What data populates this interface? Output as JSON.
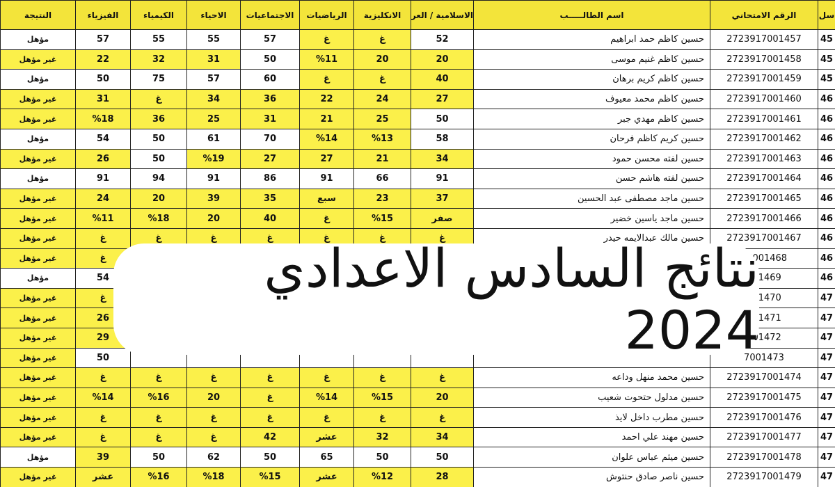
{
  "banner": {
    "title": "نتائج السادس الاعدادي 2024"
  },
  "table": {
    "headers": [
      "سل",
      "الرقم الامتحاني",
      "اسم الطالـــــب",
      "الاسلامية / العربية",
      "الانكليزية",
      "الرياضيات",
      "الاجتماعيات",
      "الاحياء",
      "الكيمياء",
      "الفيزياء",
      "النتيجة"
    ],
    "rows": [
      [
        "45",
        "2723917001457",
        "حسين كاظم حمد ابراهيم",
        "52",
        "غ",
        "غ",
        "57",
        "55",
        "55",
        "57",
        "مؤهل"
      ],
      [
        "45",
        "2723917001458",
        "حسين كاظم غنيم موسى",
        "20",
        "20",
        "%11",
        "50",
        "31",
        "32",
        "22",
        "غير مؤهل"
      ],
      [
        "45",
        "2723917001459",
        "حسين كاظم كريم برهان",
        "40",
        "غ",
        "غ",
        "60",
        "57",
        "75",
        "50",
        "مؤهل"
      ],
      [
        "46",
        "2723917001460",
        "حسين كاظم محمد معيوف",
        "27",
        "24",
        "22",
        "36",
        "34",
        "غ",
        "31",
        "غير مؤهل"
      ],
      [
        "46",
        "2723917001461",
        "حسين كاظم مهدي جبر",
        "50",
        "25",
        "21",
        "31",
        "25",
        "36",
        "%18",
        "غير مؤهل"
      ],
      [
        "46",
        "2723917001462",
        "حسين كريم كاظم فرحان",
        "58",
        "%13",
        "%14",
        "70",
        "61",
        "50",
        "54",
        "مؤهل"
      ],
      [
        "46",
        "2723917001463",
        "حسين لفته محسن حمود",
        "34",
        "21",
        "27",
        "27",
        "%19",
        "50",
        "26",
        "غير مؤهل"
      ],
      [
        "46",
        "2723917001464",
        "حسين لفته هاشم حسن",
        "91",
        "66",
        "91",
        "86",
        "91",
        "94",
        "91",
        "مؤهل"
      ],
      [
        "46",
        "2723917001465",
        "حسين ماجد مصطفى عبد الحسين",
        "37",
        "23",
        "سبع",
        "35",
        "39",
        "20",
        "24",
        "غير مؤهل"
      ],
      [
        "46",
        "2723917001466",
        "حسين ماجد ياسين خضير",
        "صفر",
        "%15",
        "غ",
        "40",
        "20",
        "%18",
        "%11",
        "غير مؤهل"
      ],
      [
        "46",
        "2723917001467",
        "حسين مالك عبدالايمه حيدر",
        "غ",
        "غ",
        "غ",
        "غ",
        "غ",
        "غ",
        "غ",
        "غير مؤهل"
      ],
      [
        "46",
        "17001468",
        null,
        null,
        null,
        null,
        null,
        null,
        null,
        "غ",
        "غير مؤهل"
      ],
      [
        "46",
        "001469",
        null,
        null,
        null,
        null,
        null,
        null,
        null,
        "54",
        "مؤهل"
      ],
      [
        "47",
        "001470",
        null,
        null,
        null,
        null,
        null,
        null,
        null,
        "غ",
        "غير مؤهل"
      ],
      [
        "47",
        "001471",
        null,
        null,
        null,
        null,
        null,
        null,
        null,
        "26",
        "غير مؤهل"
      ],
      [
        "47",
        "001472",
        null,
        null,
        null,
        null,
        null,
        null,
        null,
        "29",
        "غير مؤهل"
      ],
      [
        "47",
        "7001473",
        null,
        null,
        null,
        null,
        null,
        null,
        null,
        "50",
        "غير مؤهل"
      ],
      [
        "47",
        "2723917001474",
        "حسين محمد منهل وداعه",
        "غ",
        "غ",
        "غ",
        "غ",
        "غ",
        "غ",
        "غ",
        "غير مؤهل"
      ],
      [
        "47",
        "2723917001475",
        "حسين مدلول حتحوت شعيب",
        "20",
        "%15",
        "%14",
        "غ",
        "20",
        "%16",
        "%14",
        "غير مؤهل"
      ],
      [
        "47",
        "2723917001476",
        "حسين مطرب داخل لايذ",
        "غ",
        "غ",
        "غ",
        "غ",
        "غ",
        "غ",
        "غ",
        "غير مؤهل"
      ],
      [
        "47",
        "2723917001477",
        "حسين مهند علي احمد",
        "34",
        "32",
        "عشر",
        "42",
        "غ",
        "غ",
        "غ",
        "غير مؤهل"
      ],
      [
        "47",
        "2723917001478",
        "حسين ميثم عباس علوان",
        "50",
        "50",
        "65",
        "50",
        "62",
        "50",
        "39",
        "مؤهل"
      ],
      [
        "47",
        "2723917001479",
        "حسين ناصر صادق حنتوش",
        "28",
        "%12",
        "عشر",
        "%15",
        "%18",
        "%16",
        "عشر",
        "غير مؤهل"
      ]
    ]
  }
}
